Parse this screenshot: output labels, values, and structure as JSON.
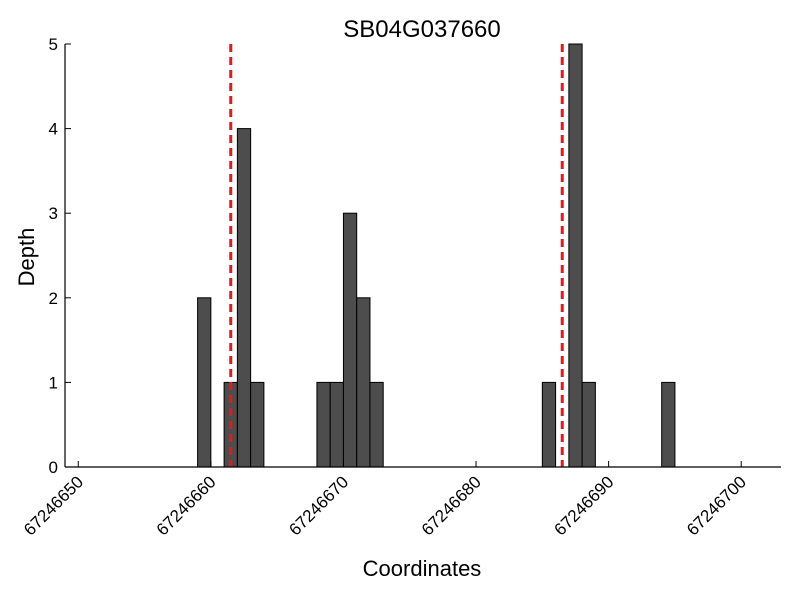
{
  "chart_data": {
    "type": "bar",
    "title": "SB04G037660",
    "xlabel": "Coordinates",
    "ylabel": "Depth",
    "xlim": [
      67246649,
      67246703
    ],
    "ylim": [
      0,
      5
    ],
    "x_ticks": [
      67246650,
      67246660,
      67246670,
      67246680,
      67246690,
      67246700
    ],
    "y_ticks": [
      0,
      1,
      2,
      3,
      4,
      5
    ],
    "bar_width": 1,
    "bars": [
      {
        "x": 67246659,
        "y": 2
      },
      {
        "x": 67246661,
        "y": 1
      },
      {
        "x": 67246662,
        "y": 4
      },
      {
        "x": 67246663,
        "y": 1
      },
      {
        "x": 67246668,
        "y": 1
      },
      {
        "x": 67246669,
        "y": 1
      },
      {
        "x": 67246670,
        "y": 3
      },
      {
        "x": 67246671,
        "y": 2
      },
      {
        "x": 67246672,
        "y": 1
      },
      {
        "x": 67246685,
        "y": 1
      },
      {
        "x": 67246687,
        "y": 5
      },
      {
        "x": 67246688,
        "y": 1
      },
      {
        "x": 67246694,
        "y": 1
      }
    ],
    "reference_lines": [
      67246661.5,
      67246686.5
    ],
    "grid": false,
    "bar_color": "#4d4d4d",
    "reference_line_color": "#e8181a"
  }
}
